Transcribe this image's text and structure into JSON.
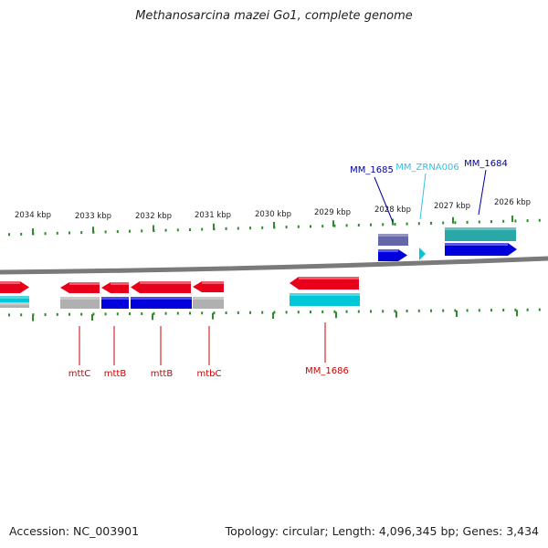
{
  "title": "Methanosarcina mazei Go1, complete genome",
  "footer": {
    "accession": "Accession: NC_003901",
    "summary": "Topology: circular; Length: 4,096,345 bp; Genes: 3,434"
  },
  "colors": {
    "backbone": "#7a7a7a",
    "tick": "#2e8b2e",
    "red": "#e8001a",
    "red_label": "#cc0000",
    "blue": "#0000dd",
    "navy_label": "#000099",
    "cyan": "#00c8d8",
    "cyan_label": "#33c0e8",
    "teal": "#2aa8a8",
    "grey": "#b0b0b0",
    "slate": "#6666aa"
  },
  "scale_labels": [
    "2034 kbp",
    "2033 kbp",
    "2032 kbp",
    "2031 kbp",
    "2030 kbp",
    "2029 kbp",
    "2028 kbp",
    "2027 kbp",
    "2026 kbp"
  ],
  "genes_top": [
    {
      "name": "MM_1685",
      "color": "navy_label"
    },
    {
      "name": "MM_ZRNA006",
      "color": "cyan_label"
    },
    {
      "name": "MM_1684",
      "color": "navy_label"
    }
  ],
  "genes_bottom": [
    {
      "name": "mttC",
      "color": "red_label"
    },
    {
      "name": "mttB",
      "color": "red_label"
    },
    {
      "name": "mttB",
      "color": "red_label"
    },
    {
      "name": "mtbC",
      "color": "red_label"
    },
    {
      "name": "MM_1686",
      "color": "red_label"
    }
  ]
}
